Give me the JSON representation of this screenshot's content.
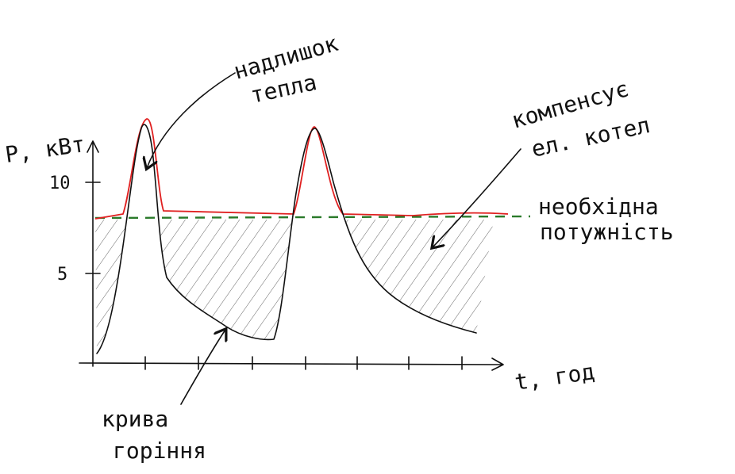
{
  "axes": {
    "y_label": "P, кВт",
    "x_label": "t, год",
    "y_ticks": [
      "10",
      "5"
    ]
  },
  "annotations": {
    "excess_heat": [
      "надлишок",
      "тепла"
    ],
    "boiler": [
      "компенсує",
      "ел. котел"
    ],
    "required": [
      "необхідна",
      "потужність"
    ],
    "burn_curve": [
      "крива",
      "горіння"
    ]
  }
}
